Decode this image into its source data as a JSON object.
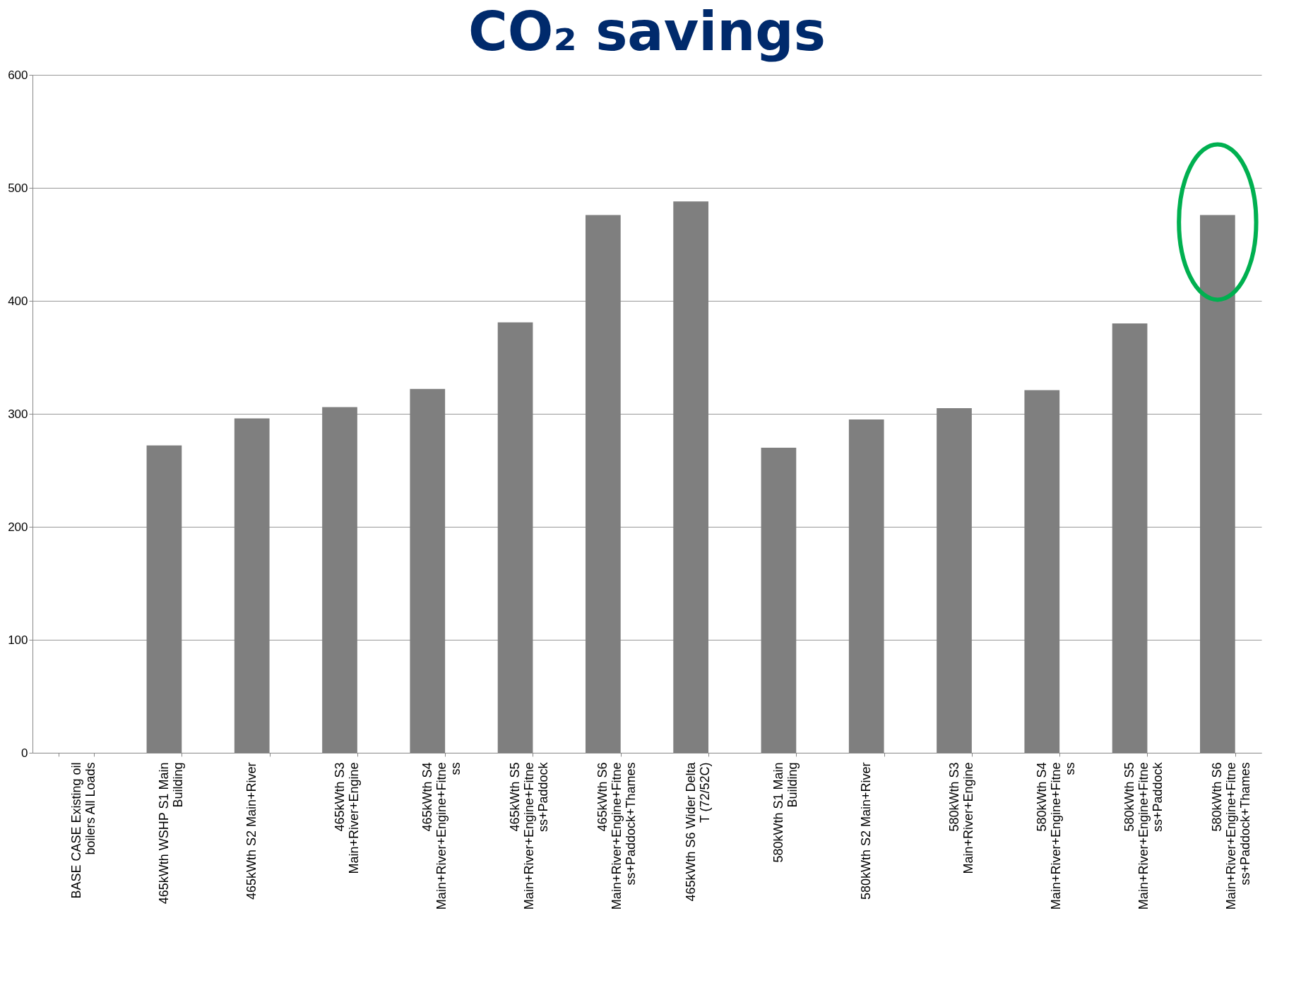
{
  "chart_data": {
    "type": "bar",
    "title": "CO₂ savings",
    "categories": [
      "BASE CASE Existing oil boilers All Loads",
      "465kWth WSHP S1 Main Building",
      "465kWth S2 Main+River",
      "465kWth S3 Main+River+Engine",
      "465kWth S4 Main+River+Engine+Fitness",
      "465kWth S5 Main+River+Engine+Fitness+Paddock",
      "465kWth S6 Main+River+Engine+Fitness+Paddock+Thames",
      "465kWth S6 Wider Delta T (72/52C)",
      "580kWth S1 Main Building",
      "580kWth S2 Main+River",
      "580kWth S3 Main+River+Engine",
      "580kWth S4 Main+River+Engine+Fitness",
      "580kWth S5 Main+River+Engine+Fitness+Paddock",
      "580kWth S6 Main+River+Engine+Fitness+Paddock+Thames"
    ],
    "values": [
      0,
      272,
      296,
      306,
      322,
      381,
      476,
      488,
      270,
      295,
      305,
      321,
      380,
      476
    ],
    "color": "#7f7f7f",
    "ylim": [
      0,
      600
    ],
    "yticks": [
      0,
      100,
      200,
      300,
      400,
      500,
      600
    ],
    "grid": "y"
  }
}
